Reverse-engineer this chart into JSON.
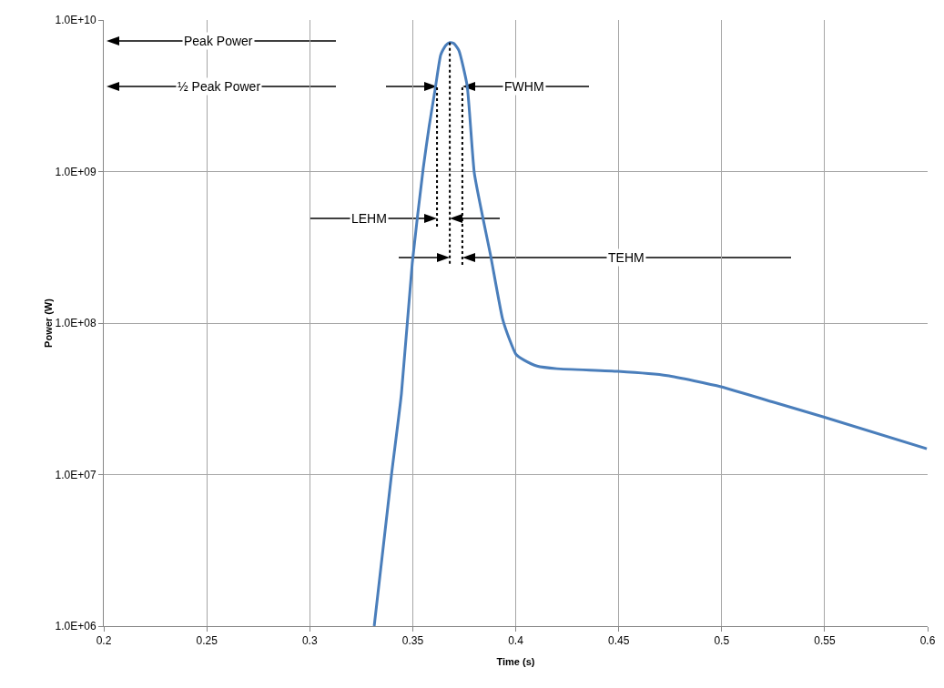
{
  "chart_data": {
    "type": "line",
    "xlabel": "Time (s)",
    "ylabel": "Power (W)",
    "log": "y",
    "grid": true,
    "marker": "none",
    "xlim": [
      0.2,
      0.6
    ],
    "xticks": [
      0.2,
      0.25,
      0.3,
      0.35,
      0.4,
      0.45,
      0.5,
      0.55,
      0.6
    ],
    "ylim": [
      1000000,
      10000000000
    ],
    "yticks": [
      {
        "value": 1000000,
        "label": "1.0E+06"
      },
      {
        "value": 10000000,
        "label": "1.0E+07"
      },
      {
        "value": 100000000,
        "label": "1.0E+08"
      },
      {
        "value": 1000000000,
        "label": "1.0E+09"
      },
      {
        "value": 10000000000,
        "label": "1.0E+10"
      }
    ],
    "series": [
      {
        "color": "#4a7ebb",
        "line_style": "solid",
        "x": [
          0.3313,
          0.3397,
          0.3445,
          0.3498,
          0.3551,
          0.358,
          0.3609,
          0.3636,
          0.366,
          0.368,
          0.37,
          0.3724,
          0.3764,
          0.3799,
          0.384,
          0.3878,
          0.3936,
          0.397,
          0.4002,
          0.404,
          0.4104,
          0.42,
          0.4497,
          0.4736,
          0.4997,
          0.5253,
          0.5496,
          0.5996
        ],
        "values": [
          1000000,
          10000000,
          34000000,
          250000000,
          1050000000,
          2000000000,
          3500000000,
          5900000000,
          6800000000,
          7100000000,
          7000000000,
          6300000000,
          3700000000,
          980000000,
          500000000,
          280000000,
          107000000,
          78000000,
          62000000,
          57000000,
          52000000,
          50000000,
          48000000,
          45000000,
          38000000,
          30000000,
          24000000,
          14800000
        ]
      },
      {
        "color": "#000000",
        "line_style": "dotted",
        "x": [
          0.3618,
          0.3618
        ],
        "values": [
          3600000000,
          430000000
        ]
      },
      {
        "color": "#000000",
        "line_style": "dotted",
        "x": [
          0.368,
          0.368
        ],
        "values": [
          7100000000,
          240000000
        ]
      },
      {
        "color": "#000000",
        "line_style": "dotted",
        "x": [
          0.3741,
          0.3741
        ],
        "values": [
          3600000000,
          240000000
        ]
      }
    ],
    "annotations": [
      "Peak Power",
      "½ Peak Power",
      "FWHM",
      "LEHM",
      "TEHM"
    ]
  }
}
